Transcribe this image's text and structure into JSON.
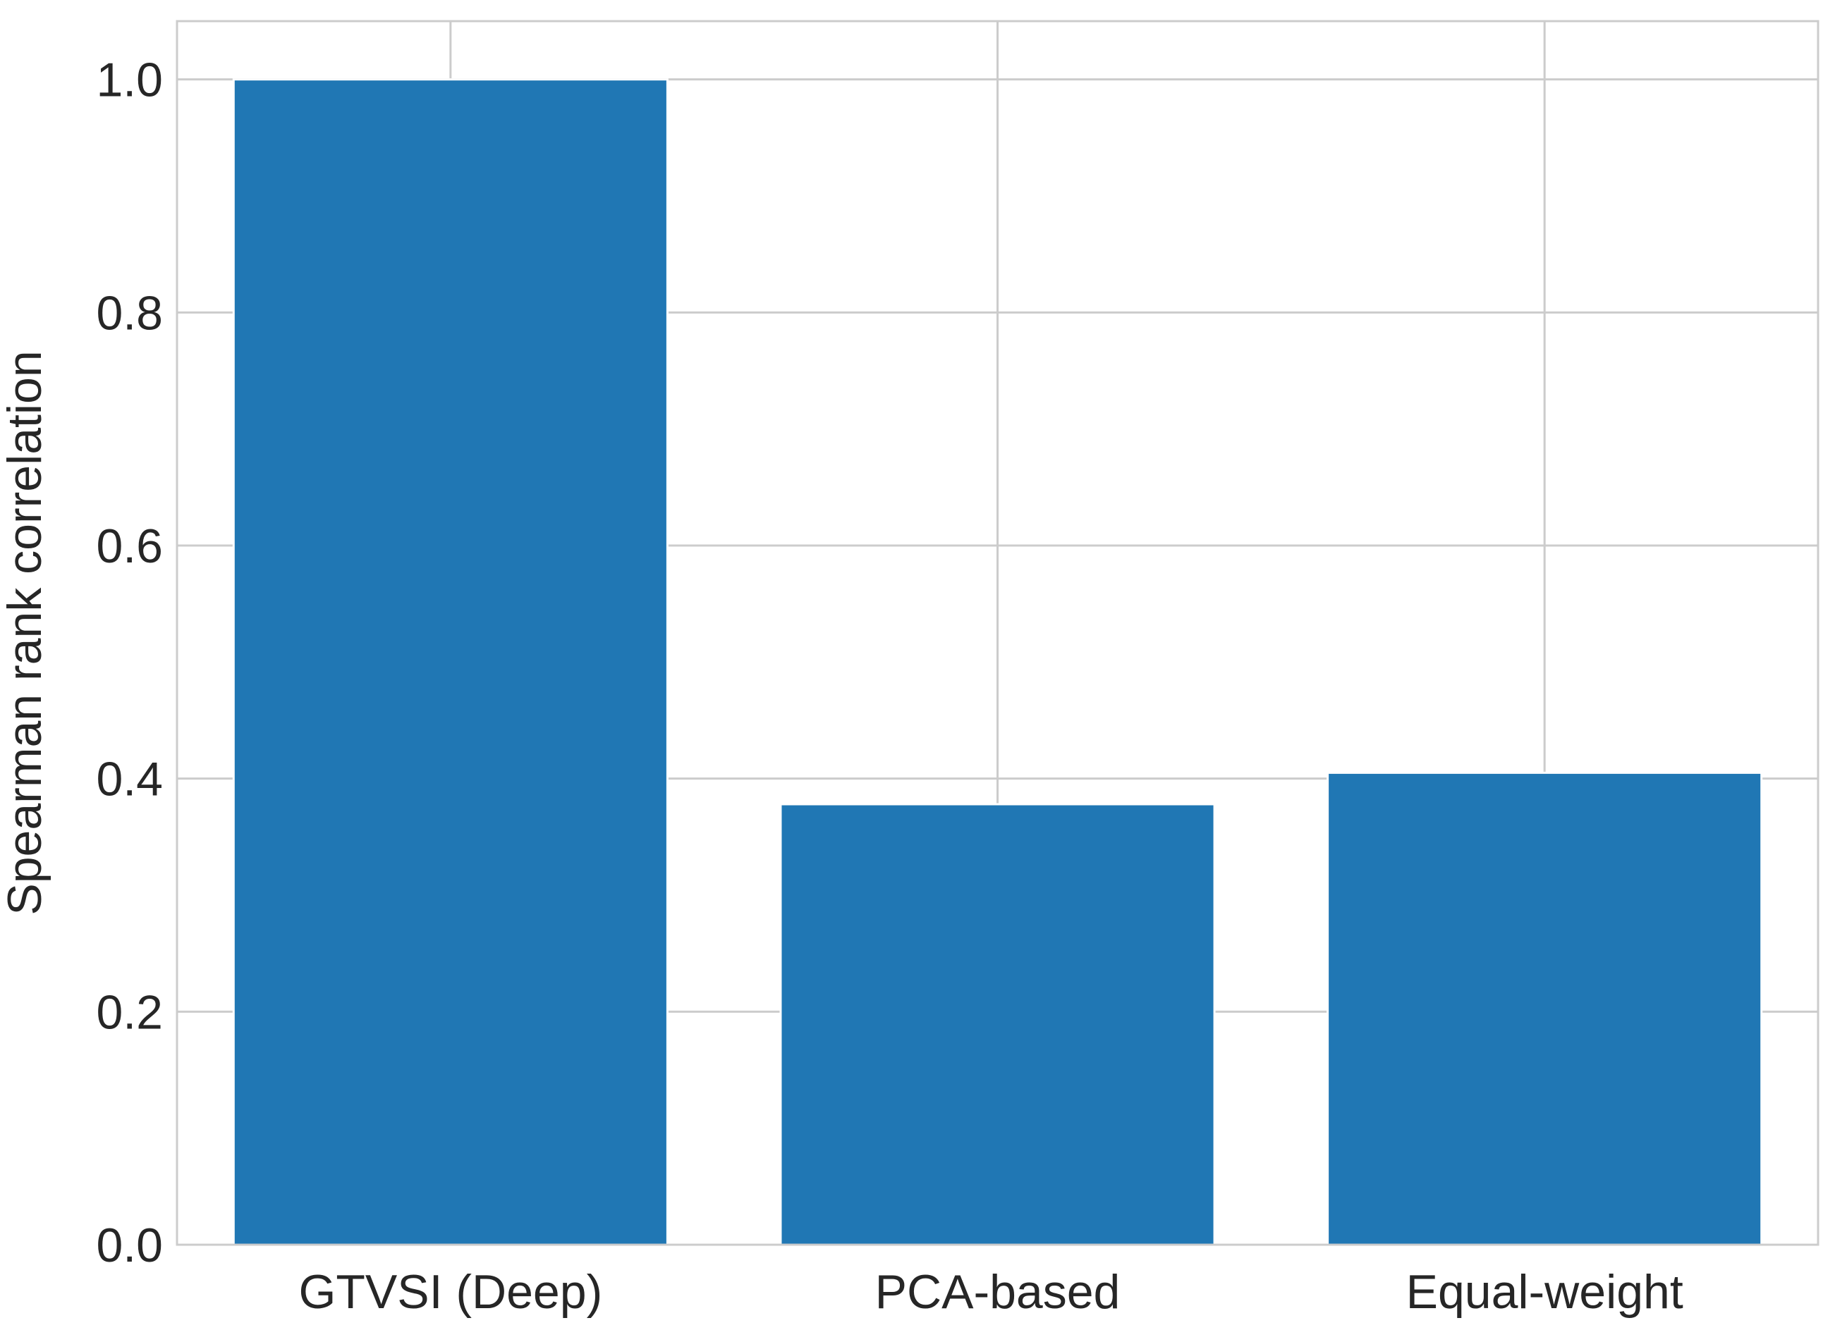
{
  "chart_data": {
    "type": "bar",
    "title": "",
    "xlabel": "",
    "ylabel": "Spearman rank correlation",
    "categories": [
      "GTVSI (Deep)",
      "PCA-based",
      "Equal-weight"
    ],
    "values": [
      1.0,
      0.378,
      0.405
    ],
    "ylim": [
      0,
      1.05
    ],
    "yticks": [
      0.0,
      0.2,
      0.4,
      0.6,
      0.8,
      1.0
    ],
    "ytick_labels": [
      "0.0",
      "0.2",
      "0.4",
      "0.6",
      "0.8",
      "1.0"
    ],
    "grid": true,
    "bar_color": "#2077b4",
    "grid_color": "#cccccc"
  }
}
